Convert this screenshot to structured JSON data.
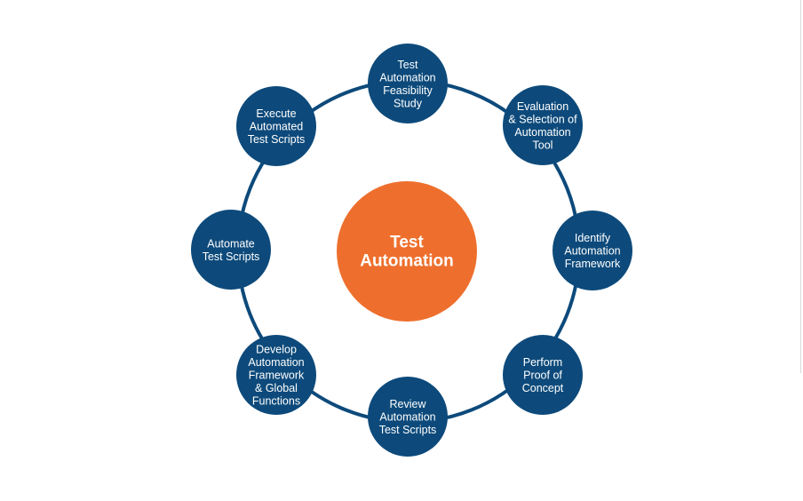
{
  "colors": {
    "node_fill": "#0d4a7b",
    "ring_stroke": "#0d4a7b",
    "center_fill": "#ee6f2d",
    "text": "#ffffff",
    "background": "#ffffff"
  },
  "center": {
    "label_lines": [
      "Test",
      "Automation"
    ]
  },
  "steps": [
    {
      "id": "feasibility",
      "label_lines": [
        "Test",
        "Automation",
        "Feasibility",
        "Study"
      ]
    },
    {
      "id": "tool-selection",
      "label_lines": [
        "Evaluation",
        "& Selection of",
        "Automation",
        "Tool"
      ]
    },
    {
      "id": "identify-framework",
      "label_lines": [
        "Identify",
        "Automation",
        "Framework"
      ]
    },
    {
      "id": "proof-of-concept",
      "label_lines": [
        "Perform",
        "Proof of",
        "Concept"
      ]
    },
    {
      "id": "review-scripts",
      "label_lines": [
        "Review",
        "Automation",
        "Test Scripts"
      ]
    },
    {
      "id": "develop-framework",
      "label_lines": [
        "Develop",
        "Automation",
        "Framework",
        "& Global",
        "Functions"
      ]
    },
    {
      "id": "automate-scripts",
      "label_lines": [
        "Automate",
        "Test Scripts"
      ]
    },
    {
      "id": "execute-scripts",
      "label_lines": [
        "Execute",
        "Automated",
        "Test Scripts"
      ]
    }
  ]
}
